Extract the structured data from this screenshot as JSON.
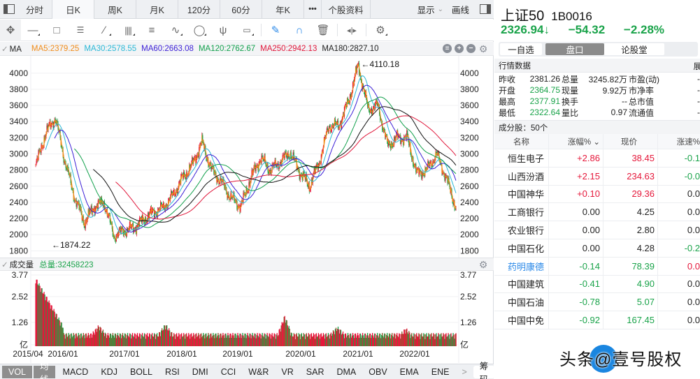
{
  "period_bar": {
    "tabs": [
      "分时",
      "日K",
      "周K",
      "月K",
      "120分",
      "60分",
      "年K",
      "•••",
      "个股资料"
    ],
    "active": "日K",
    "display_label": "显示",
    "draw_label": "画线"
  },
  "toolbar": {
    "icons": [
      "crosshair-move-icon",
      "line-icon",
      "rectangle-icon",
      "fan-icon",
      "segment-icon",
      "vertical-lines-icon",
      "text-box-icon",
      "wave-icon",
      "circle-icon",
      "fork-icon",
      "label-icon",
      "pen-icon",
      "magnet-icon",
      "trash-icon",
      "zoom-width-icon",
      "settings-icon"
    ]
  },
  "ma_legend": {
    "label": "MA",
    "items": [
      {
        "text": "MA5:2379.25",
        "color": "#f08c1a"
      },
      {
        "text": "MA30:2578.55",
        "color": "#2bb8d6"
      },
      {
        "text": "MA60:2663.08",
        "color": "#3b1fd6"
      },
      {
        "text": "MA120:2762.67",
        "color": "#12a04c"
      },
      {
        "text": "MA250:2942.13",
        "color": "#e0173a"
      },
      {
        "text": "MA180:2827.10",
        "color": "#222222"
      }
    ]
  },
  "volume_legend": {
    "label": "成交量",
    "total": "总量:32458223",
    "total_color": "#1aa34a"
  },
  "indicator_tabs": [
    "VOL",
    "均线",
    "MACD",
    "KDJ",
    "BOLL",
    "RSI",
    "DMI",
    "CCI",
    "W&R",
    "VR",
    "SAR",
    "DMA",
    "OBV",
    "EMA",
    "ENE"
  ],
  "indicator_active": [
    "VOL",
    "均线"
  ],
  "indicator_more": ">",
  "chips_label": "筹码",
  "chart_data": {
    "type": "candlestick",
    "title": "上证50 日K",
    "y_ticks": [
      4000,
      3800,
      3600,
      3400,
      3200,
      3000,
      2800,
      2600,
      2400,
      2200,
      2000,
      1800
    ],
    "ylim": [
      1760,
      4180
    ],
    "x_ticks": [
      "2015/04",
      "2016/01",
      "2017/01",
      "2018/01",
      "2019/01",
      "2020/01",
      "2021/01",
      "2022/01"
    ],
    "annotations": [
      {
        "text": "←4110.18",
        "type": "max"
      },
      {
        "text": "←1874.22",
        "type": "min"
      }
    ],
    "close_series": [
      {
        "x": "2015/04",
        "y": 2850
      },
      {
        "x": "2015/05",
        "y": 3250
      },
      {
        "x": "2015/06",
        "y": 3450
      },
      {
        "x": "2015/07",
        "y": 2900
      },
      {
        "x": "2015/08",
        "y": 2450
      },
      {
        "x": "2015/09",
        "y": 2150
      },
      {
        "x": "2015/11",
        "y": 2350
      },
      {
        "x": "2015/12",
        "y": 2400
      },
      {
        "x": "2016/01",
        "y": 1980
      },
      {
        "x": "2016/03",
        "y": 2050
      },
      {
        "x": "2016/06",
        "y": 2080
      },
      {
        "x": "2016/09",
        "y": 2180
      },
      {
        "x": "2016/12",
        "y": 2280
      },
      {
        "x": "2017/03",
        "y": 2330
      },
      {
        "x": "2017/06",
        "y": 2480
      },
      {
        "x": "2017/09",
        "y": 2700
      },
      {
        "x": "2017/12",
        "y": 2860
      },
      {
        "x": "2018/01",
        "y": 3150
      },
      {
        "x": "2018/03",
        "y": 2800
      },
      {
        "x": "2018/06",
        "y": 2650
      },
      {
        "x": "2018/09",
        "y": 2450
      },
      {
        "x": "2018/12",
        "y": 2350
      },
      {
        "x": "2019/02",
        "y": 2700
      },
      {
        "x": "2019/04",
        "y": 2950
      },
      {
        "x": "2019/06",
        "y": 2800
      },
      {
        "x": "2019/09",
        "y": 2900
      },
      {
        "x": "2019/12",
        "y": 3020
      },
      {
        "x": "2020/02",
        "y": 2780
      },
      {
        "x": "2020/03",
        "y": 2600
      },
      {
        "x": "2020/06",
        "y": 2900
      },
      {
        "x": "2020/07",
        "y": 3350
      },
      {
        "x": "2020/10",
        "y": 3350
      },
      {
        "x": "2020/12",
        "y": 3650
      },
      {
        "x": "2021/02",
        "y": 4100
      },
      {
        "x": "2021/03",
        "y": 3550
      },
      {
        "x": "2021/06",
        "y": 3600
      },
      {
        "x": "2021/08",
        "y": 3100
      },
      {
        "x": "2021/11",
        "y": 3200
      },
      {
        "x": "2022/01",
        "y": 3200
      },
      {
        "x": "2022/03",
        "y": 2750
      },
      {
        "x": "2022/05",
        "y": 2800
      },
      {
        "x": "2022/07",
        "y": 3000
      },
      {
        "x": "2022/09",
        "y": 2700
      },
      {
        "x": "2022/10",
        "y": 2330
      }
    ],
    "ma_series": [
      {
        "name": "MA5",
        "value": 2379.25
      },
      {
        "name": "MA30",
        "value": 2578.55
      },
      {
        "name": "MA60",
        "value": 2663.08
      },
      {
        "name": "MA120",
        "value": 2762.67
      },
      {
        "name": "MA250",
        "value": 2942.13
      },
      {
        "name": "MA180",
        "value": 2827.1
      }
    ],
    "volume": {
      "y_ticks": [
        "3.77",
        "2.52",
        "1.26",
        "亿"
      ],
      "total": 32458223
    }
  },
  "stock": {
    "name": "上证50",
    "code": "1B0016",
    "price": "2326.94",
    "arrow": "↓",
    "change": "−54.32",
    "change_pct": "−2.28%"
  },
  "segment": {
    "watch": "一自选",
    "tab_quote": "盘口",
    "tab_forum": "论股堂"
  },
  "market_data": {
    "title": "行情数据",
    "expand": "展",
    "rows": [
      {
        "k1": "昨收",
        "v1": "2381.26",
        "c1": "",
        "k2": "总量",
        "v2": "3245.82万",
        "k3": "市盈(动)",
        "v3": "-"
      },
      {
        "k1": "开盘",
        "v1": "2364.75",
        "c1": "green",
        "k2": "现量",
        "v2": "9.92万",
        "k3": "市净率",
        "v3": "-"
      },
      {
        "k1": "最高",
        "v1": "2377.91",
        "c1": "green",
        "k2": "换手",
        "v2": "--",
        "k3": "总市值",
        "v3": "-"
      },
      {
        "k1": "最低",
        "v1": "2322.64",
        "c1": "green",
        "k2": "量比",
        "v2": "0.97",
        "k3": "流通值",
        "v3": "-"
      }
    ]
  },
  "constituents": {
    "title": "成分股：50个",
    "columns": [
      "名称",
      "涨幅% ⌄",
      "现价",
      "涨速%"
    ],
    "rows": [
      {
        "name": "恒生电子",
        "pct": "+2.86",
        "price": "38.45",
        "speed": "-0.1",
        "pc": "red",
        "sc": "green",
        "nc": ""
      },
      {
        "name": "山西汾酒",
        "pct": "+2.15",
        "price": "234.63",
        "speed": "-0.0",
        "pc": "red",
        "sc": "green",
        "nc": ""
      },
      {
        "name": "中国神华",
        "pct": "+0.10",
        "price": "29.36",
        "speed": "0.0",
        "pc": "red",
        "sc": "",
        "nc": ""
      },
      {
        "name": "工商银行",
        "pct": "0.00",
        "price": "4.25",
        "speed": "0.0",
        "pc": "",
        "sc": "",
        "nc": ""
      },
      {
        "name": "农业银行",
        "pct": "0.00",
        "price": "2.80",
        "speed": "0.0",
        "pc": "",
        "sc": "",
        "nc": ""
      },
      {
        "name": "中国石化",
        "pct": "0.00",
        "price": "4.28",
        "speed": "-0.2",
        "pc": "",
        "sc": "green",
        "nc": ""
      },
      {
        "name": "药明康德",
        "pct": "-0.14",
        "price": "78.39",
        "speed": "0.0",
        "pc": "green",
        "sc": "red",
        "nc": "blue"
      },
      {
        "name": "中国建筑",
        "pct": "-0.41",
        "price": "4.90",
        "speed": "0.0",
        "pc": "green",
        "sc": "",
        "nc": ""
      },
      {
        "name": "中国石油",
        "pct": "-0.78",
        "price": "5.07",
        "speed": "0.0",
        "pc": "green",
        "sc": "",
        "nc": ""
      },
      {
        "name": "中国中免",
        "pct": "-0.92",
        "price": "167.45",
        "speed": "0.0",
        "pc": "green",
        "sc": "",
        "nc": ""
      }
    ]
  },
  "watermark": "头条@壹号股权",
  "colors": {
    "up": "#e5173a",
    "down": "#1aa34a",
    "link": "#2d8ae8"
  }
}
